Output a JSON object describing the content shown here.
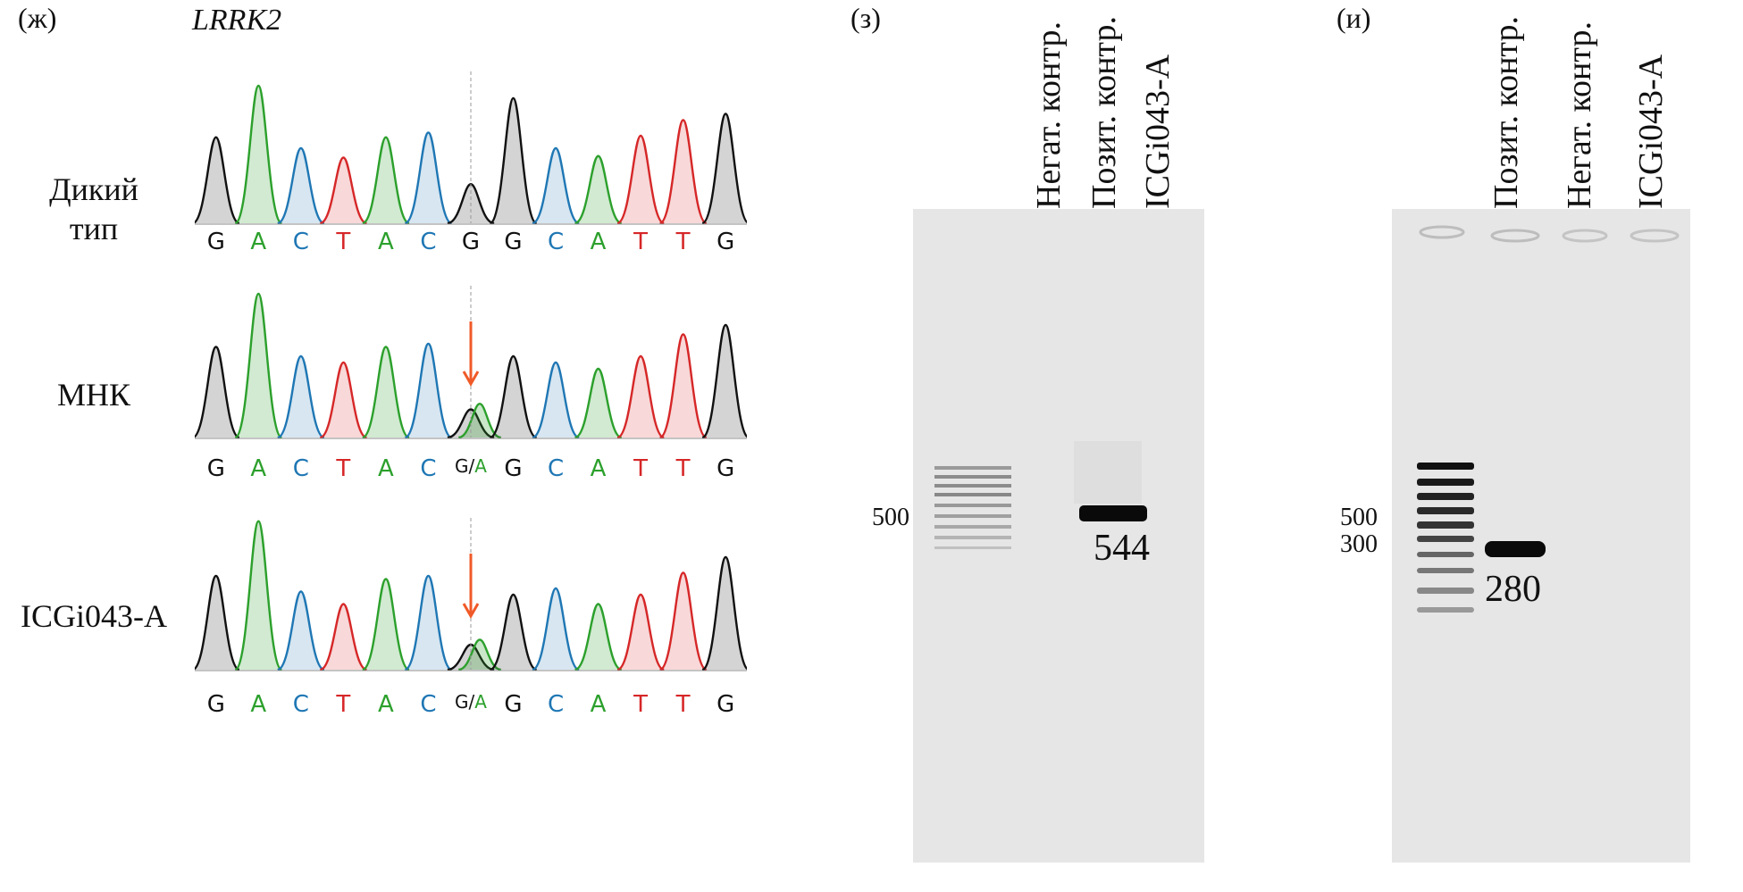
{
  "panel_zh": {
    "letter": "(ж)",
    "gene": "LRRK2",
    "rows": [
      {
        "label_line1": "Дикий",
        "label_line2": "тип",
        "bases": [
          "G",
          "A",
          "C",
          "T",
          "A",
          "C",
          "G",
          "G",
          "C",
          "A",
          "T",
          "T",
          "G"
        ]
      },
      {
        "label_line1": "МНК",
        "label_line2": "",
        "bases": [
          "G",
          "A",
          "C",
          "T",
          "A",
          "C",
          "G/A",
          "G",
          "C",
          "A",
          "T",
          "T",
          "G"
        ]
      },
      {
        "label_line1": "ICGi043-A",
        "label_line2": "",
        "bases": [
          "G",
          "A",
          "C",
          "T",
          "A",
          "C",
          "G/A",
          "G",
          "C",
          "A",
          "T",
          "T",
          "G"
        ]
      }
    ],
    "base_colors": {
      "G": "#111111",
      "A": "#2ca02c",
      "C": "#1f77b4",
      "T": "#d62728"
    }
  },
  "panel_z": {
    "letter": "(з)",
    "lanes": [
      "Негат. контр.",
      "Позит. контр.",
      "ICGi043-A"
    ],
    "marker": "500",
    "band_size": "544"
  },
  "panel_i": {
    "letter": "(и)",
    "lanes": [
      "Позит. контр.",
      "Негат. контр.",
      "ICGi043-A"
    ],
    "marker_high": "500",
    "marker_low": "300",
    "band_size": "280"
  }
}
